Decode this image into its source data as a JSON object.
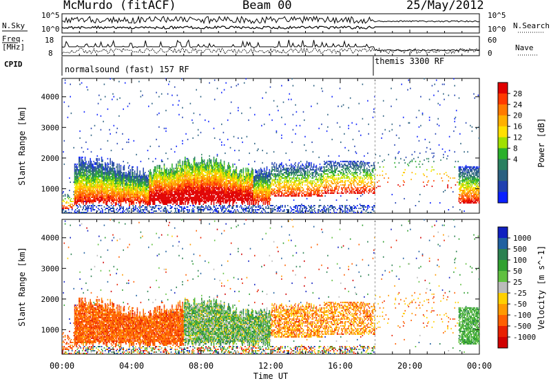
{
  "header": {
    "title": "McMurdo (fitACF)",
    "beam": "Beam 00",
    "date": "25/May/2012"
  },
  "status_panels": {
    "left_labels": {
      "nsky": "N.Sky",
      "freq": "Freq.",
      "freq_unit": "[MHz]",
      "cpid": "CPID"
    },
    "right_labels": {
      "nsearch": "N.Search",
      "nave": "Nave"
    },
    "noise_ticks_left": [
      "10^5",
      "10^0"
    ],
    "noise_ticks_right": [
      "10^5",
      "10^0"
    ],
    "freq_ticks": [
      "18",
      "8"
    ],
    "nave_ticks": [
      "60",
      "0"
    ],
    "cpid_segments": [
      {
        "label": "normalsound (fast) 157 RF",
        "start_hour": 0.3,
        "end_hour": 18.0
      },
      {
        "label": "themis 3300 RF",
        "start_hour": 18.0,
        "end_hour": 24.0
      }
    ]
  },
  "chart_data": [
    {
      "type": "heatmap",
      "name": "power",
      "ylabel": "Slant Range [km]",
      "xlabel": "",
      "xlim": [
        0,
        24
      ],
      "ylim": [
        200,
        4600
      ],
      "yticks": [
        "1000",
        "2000",
        "3000",
        "4000"
      ],
      "colorbar": {
        "label": "Power [dB]",
        "ticks": [
          "28",
          "24",
          "20",
          "16",
          "12",
          "8",
          "4"
        ],
        "colors": [
          "#e00000",
          "#ff3a00",
          "#ff7a00",
          "#ffb000",
          "#ffe000",
          "#a0e000",
          "#2ab02a",
          "#2a8060",
          "#2a6080",
          "#2040b0",
          "#0a20ff"
        ]
      }
    },
    {
      "type": "heatmap",
      "name": "velocity",
      "ylabel": "Slant Range [km]",
      "xlabel": "Time UT",
      "xlim": [
        0,
        24
      ],
      "ylim": [
        200,
        4600
      ],
      "xticks": [
        "00:00",
        "04:00",
        "08:00",
        "12:00",
        "16:00",
        "20:00",
        "00:00"
      ],
      "yticks": [
        "1000",
        "2000",
        "3000",
        "4000"
      ],
      "colorbar": {
        "label": "Velocity [m s^-1]",
        "ticks": [
          "1000",
          "500",
          "100",
          "50",
          "25",
          "-25",
          "-50",
          "-100",
          "-500",
          "-1000"
        ],
        "colors": [
          "#1020c0",
          "#2060a0",
          "#2a8050",
          "#30a030",
          "#60c040",
          "#bbbbbb",
          "#ffd000",
          "#ff9a00",
          "#ff6000",
          "#e82000",
          "#d00000"
        ]
      }
    }
  ]
}
